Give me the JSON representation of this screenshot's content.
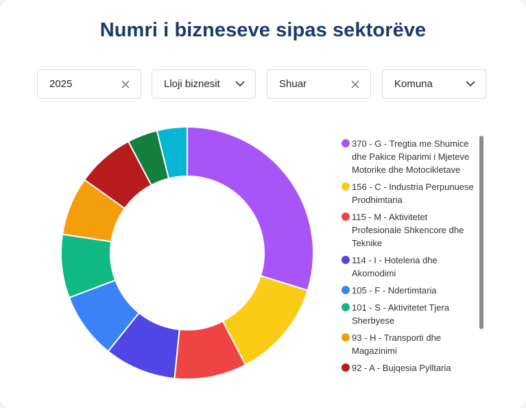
{
  "title": "Numri i bizneseve sipas sektorëve",
  "filters": {
    "year": "2025",
    "business_type": "Lloji biznesit",
    "status": "Shuar",
    "municipality": "Komuna"
  },
  "colors": {
    "title": "#1a3a6b"
  },
  "chart_data": {
    "type": "pie",
    "donut": true,
    "legend_position": "right",
    "slices": [
      {
        "label": "370 - G - Tregtia me Shumice dhe Pakice Riparimi i Mjeteve Motorike dhe Motocikletave",
        "value": 370,
        "color": "#a855f7"
      },
      {
        "label": "156 - C - Industria Perpunuese Prodhimtaria",
        "value": 156,
        "color": "#facc15"
      },
      {
        "label": "115 - M - Aktivitetet Profesionale Shkencore dhe Teknike",
        "value": 115,
        "color": "#ef4444"
      },
      {
        "label": "114 - I - Hoteleria dhe Akomodimi",
        "value": 114,
        "color": "#4f46e5"
      },
      {
        "label": "105 - F - Ndertimtaria",
        "value": 105,
        "color": "#3b82f6"
      },
      {
        "label": "101 - S - Aktivitetet Tjera Sherbyese",
        "value": 101,
        "color": "#10b981"
      },
      {
        "label": "93 - H - Transporti dhe Magazinimi",
        "value": 93,
        "color": "#f59e0b"
      },
      {
        "label": "92 - A - Bujqesia Pylltaria",
        "value": 92,
        "color": "#b91c1c"
      },
      {
        "label": "",
        "value": 48,
        "color": "#15803d"
      },
      {
        "label": "",
        "value": 48,
        "color": "#06b6d4"
      }
    ]
  }
}
